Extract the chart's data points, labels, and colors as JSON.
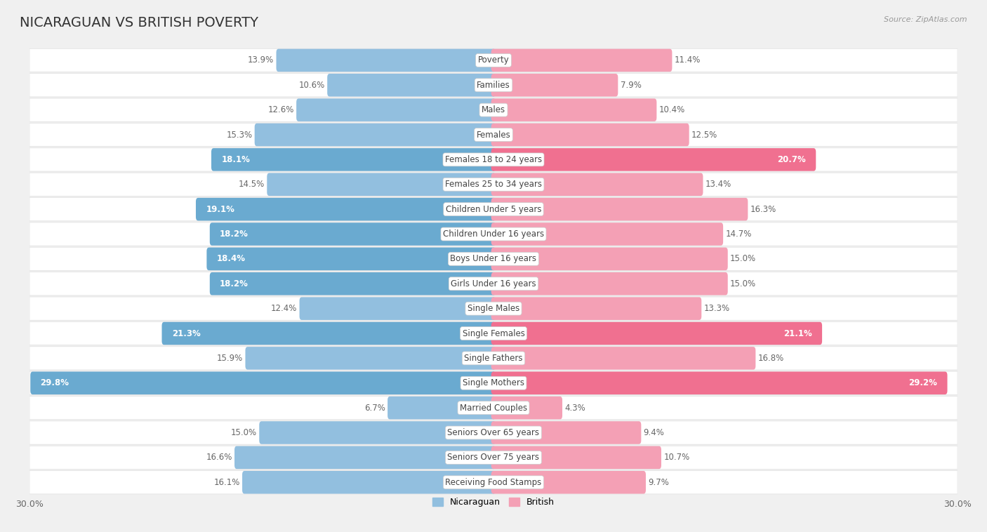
{
  "title": "NICARAGUAN VS BRITISH POVERTY",
  "source": "Source: ZipAtlas.com",
  "categories": [
    "Poverty",
    "Families",
    "Males",
    "Females",
    "Females 18 to 24 years",
    "Females 25 to 34 years",
    "Children Under 5 years",
    "Children Under 16 years",
    "Boys Under 16 years",
    "Girls Under 16 years",
    "Single Males",
    "Single Females",
    "Single Fathers",
    "Single Mothers",
    "Married Couples",
    "Seniors Over 65 years",
    "Seniors Over 75 years",
    "Receiving Food Stamps"
  ],
  "nicaraguan": [
    13.9,
    10.6,
    12.6,
    15.3,
    18.1,
    14.5,
    19.1,
    18.2,
    18.4,
    18.2,
    12.4,
    21.3,
    15.9,
    29.8,
    6.7,
    15.0,
    16.6,
    16.1
  ],
  "british": [
    11.4,
    7.9,
    10.4,
    12.5,
    20.7,
    13.4,
    16.3,
    14.7,
    15.0,
    15.0,
    13.3,
    21.1,
    16.8,
    29.2,
    4.3,
    9.4,
    10.7,
    9.7
  ],
  "nicaraguan_color": "#92bfdf",
  "british_color": "#f4a0b5",
  "nic_highlight_color": "#6aaad0",
  "brit_highlight_color": "#f07090",
  "nic_highlight_indices": [
    4,
    6,
    7,
    8,
    9,
    11,
    13
  ],
  "brit_highlight_indices": [
    4,
    11,
    13
  ],
  "bg_color": "#f0f0f0",
  "row_colors": [
    "#ffffff",
    "#f0f0f0"
  ],
  "row_border_color": "#dddddd",
  "max_value": 30.0,
  "legend_labels": [
    "Nicaraguan",
    "British"
  ],
  "title_fontsize": 14,
  "label_fontsize": 8.5,
  "value_fontsize": 8.5
}
